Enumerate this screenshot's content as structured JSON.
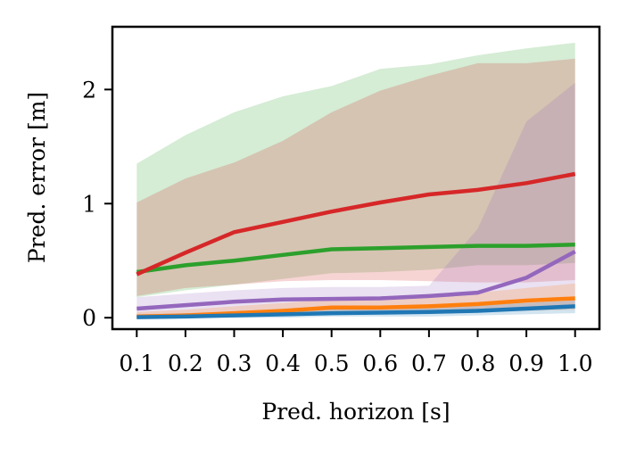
{
  "chart_data": {
    "type": "line",
    "xlabel": "Pred. horizon [s]",
    "ylabel": "Pred. error [m]",
    "x": [
      0.1,
      0.2,
      0.3,
      0.4,
      0.5,
      0.6,
      0.7,
      0.8,
      0.9,
      1.0
    ],
    "xtick_labels": [
      "0.1",
      "0.2",
      "0.3",
      "0.4",
      "0.5",
      "0.6",
      "0.7",
      "0.8",
      "0.9",
      "1.0"
    ],
    "yticks": [
      0,
      1,
      2
    ],
    "ytick_labels": [
      "0",
      "1",
      "2"
    ],
    "xlim": [
      0.05,
      1.05
    ],
    "ylim": [
      -0.1,
      2.55
    ],
    "grid": false,
    "series": [
      {
        "color": "#2ca02c",
        "values": [
          0.4,
          0.46,
          0.5,
          0.55,
          0.6,
          0.61,
          0.62,
          0.63,
          0.63,
          0.64
        ],
        "band_upper": [
          1.35,
          1.6,
          1.8,
          1.94,
          2.03,
          2.18,
          2.22,
          2.3,
          2.36,
          2.41
        ],
        "band_lower": [
          0.18,
          0.24,
          0.29,
          0.34,
          0.39,
          0.4,
          0.42,
          0.46,
          0.46,
          0.48
        ]
      },
      {
        "color": "#d62728",
        "values": [
          0.38,
          0.57,
          0.75,
          0.84,
          0.93,
          1.01,
          1.08,
          1.12,
          1.18,
          1.26
        ],
        "band_upper": [
          1.01,
          1.22,
          1.36,
          1.55,
          1.8,
          1.99,
          2.12,
          2.23,
          2.23,
          2.27
        ],
        "band_lower": [
          0.19,
          0.26,
          0.29,
          0.32,
          0.33,
          0.33,
          0.32,
          0.31,
          0.31,
          0.33
        ]
      },
      {
        "color": "#9467bd",
        "values": [
          0.08,
          0.11,
          0.14,
          0.16,
          0.165,
          0.17,
          0.19,
          0.22,
          0.35,
          0.58
        ],
        "band_upper": [
          0.18,
          0.21,
          0.24,
          0.26,
          0.27,
          0.27,
          0.28,
          0.78,
          1.72,
          2.06
        ],
        "band_lower": [
          0.02,
          0.03,
          0.04,
          0.05,
          0.06,
          0.06,
          0.06,
          0.07,
          0.08,
          0.1
        ]
      },
      {
        "color": "#ff7f0e",
        "values": [
          0.01,
          0.02,
          0.04,
          0.06,
          0.09,
          0.09,
          0.1,
          0.12,
          0.15,
          0.17
        ],
        "band_upper": [
          0.05,
          0.07,
          0.1,
          0.13,
          0.16,
          0.18,
          0.2,
          0.22,
          0.26,
          0.3
        ],
        "band_lower": [
          0.0,
          0.0,
          0.01,
          0.02,
          0.03,
          0.04,
          0.04,
          0.05,
          0.06,
          0.07
        ]
      },
      {
        "color": "#1f77b4",
        "values": [
          0.005,
          0.01,
          0.02,
          0.03,
          0.04,
          0.045,
          0.05,
          0.06,
          0.08,
          0.1
        ],
        "band_upper": [
          0.03,
          0.04,
          0.05,
          0.06,
          0.08,
          0.09,
          0.1,
          0.11,
          0.13,
          0.15
        ],
        "band_lower": [
          0.0,
          0.0,
          0.0,
          0.0,
          0.01,
          0.01,
          0.01,
          0.02,
          0.03,
          0.04
        ]
      }
    ]
  }
}
